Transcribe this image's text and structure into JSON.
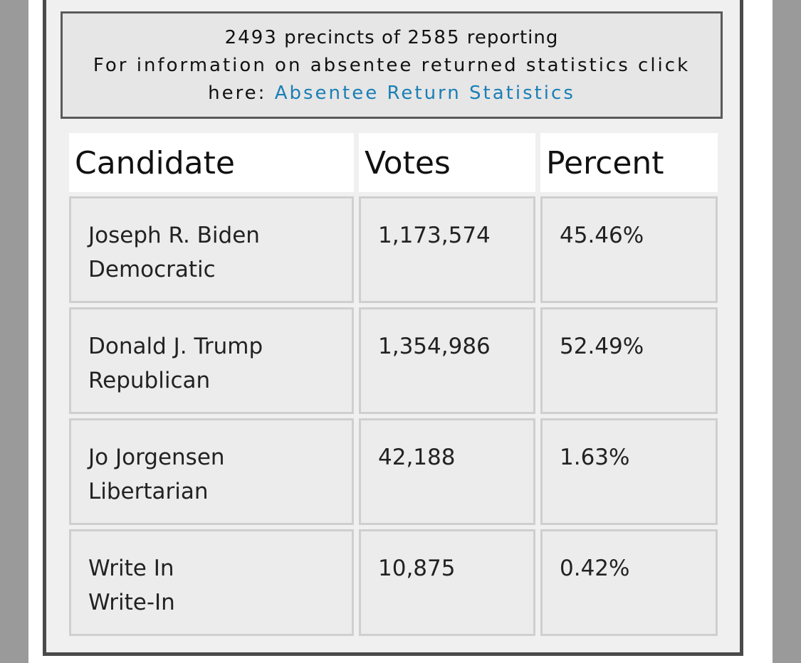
{
  "info": {
    "precincts_reported": "2493",
    "precincts_of": "precincts of",
    "precincts_total": "2585",
    "reporting_label": "reporting",
    "absentee_text_line1": "For information on absentee returned statistics click",
    "absentee_text_line2": "here:",
    "absentee_link": "Absentee Return Statistics"
  },
  "table": {
    "headers": {
      "candidate": "Candidate",
      "votes": "Votes",
      "percent": "Percent"
    },
    "rows": [
      {
        "name": "Joseph R. Biden",
        "party": "Democratic",
        "votes": "1,173,574",
        "percent": "45.46%"
      },
      {
        "name": "Donald J. Trump",
        "party": "Republican",
        "votes": "1,354,986",
        "percent": "52.49%"
      },
      {
        "name": "Jo Jorgensen",
        "party": "Libertarian",
        "votes": "42,188",
        "percent": "1.63%"
      },
      {
        "name": "Write In",
        "party": "Write-In",
        "votes": "10,875",
        "percent": "0.42%"
      }
    ]
  },
  "colors": {
    "link": "#1a7fb5",
    "panel_border": "#4a4a4a",
    "cell_bg": "#ececec"
  }
}
